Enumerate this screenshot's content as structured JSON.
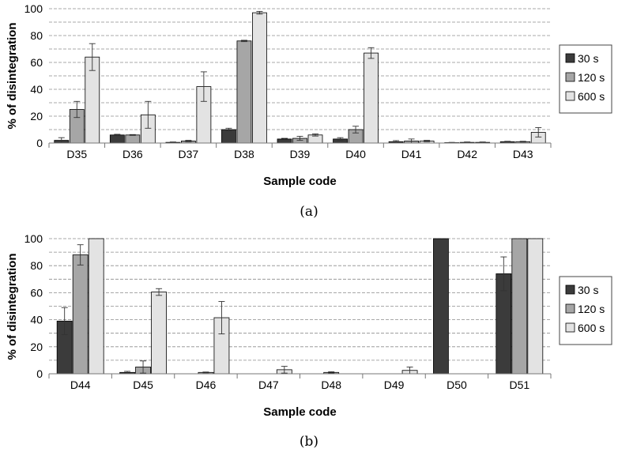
{
  "legend": {
    "labels": [
      "30 s",
      "120 s",
      "600 s"
    ],
    "colors": [
      "#3b3b3b",
      "#a6a6a6",
      "#e3e3e3"
    ]
  },
  "chart_data": [
    {
      "type": "bar",
      "caption": "(a)",
      "xlabel": "Sample code",
      "ylabel": "% of disintegration",
      "ylim": [
        0,
        100
      ],
      "yticks": [
        "0",
        "20",
        "40",
        "60",
        "80",
        "100"
      ],
      "grid": "dashed horizontal every 10",
      "legend_position": "right",
      "categories": [
        "D35",
        "D36",
        "D37",
        "D38",
        "D39",
        "D40",
        "D41",
        "D42",
        "D43"
      ],
      "series": [
        {
          "name": "30 s",
          "values": [
            2,
            6,
            0.5,
            10,
            3,
            3,
            1,
            0.3,
            1
          ],
          "errors": [
            2,
            0.5,
            0.3,
            1,
            0.5,
            1,
            0.8,
            0.2,
            0.3
          ]
        },
        {
          "name": "120 s",
          "values": [
            25,
            6,
            1.5,
            76,
            3.5,
            10,
            1.5,
            0.5,
            1
          ],
          "errors": [
            6,
            0.3,
            0.5,
            0.5,
            1.5,
            2.5,
            1.5,
            0.3,
            0.3
          ]
        },
        {
          "name": "600 s",
          "values": [
            64,
            21,
            42,
            97,
            6,
            67,
            1.5,
            0.5,
            8
          ],
          "errors": [
            10,
            10,
            11,
            1,
            0.8,
            4,
            0.5,
            0.3,
            3.5
          ]
        }
      ]
    },
    {
      "type": "bar",
      "caption": "(b)",
      "xlabel": "Sample code",
      "ylabel": "% of disintegration",
      "ylim": [
        0,
        100
      ],
      "yticks": [
        "0",
        "20",
        "40",
        "60",
        "80",
        "100"
      ],
      "grid": "dashed horizontal every 10",
      "legend_position": "right",
      "categories": [
        "D44",
        "D45",
        "D46",
        "D47",
        "D48",
        "D49",
        "D50",
        "D51"
      ],
      "series": [
        {
          "name": "30 s",
          "values": [
            39,
            1,
            0,
            0,
            0,
            0,
            100,
            74
          ],
          "errors": [
            10,
            0.8,
            0,
            0,
            0,
            0,
            0,
            12.5
          ]
        },
        {
          "name": "120 s",
          "values": [
            88,
            5,
            1,
            0,
            1,
            0,
            0,
            100
          ],
          "errors": [
            7.5,
            4.5,
            0.3,
            0,
            0.5,
            0,
            0,
            0
          ]
        },
        {
          "name": "600 s",
          "values": [
            100,
            60.5,
            41.5,
            3,
            0,
            2.5,
            0,
            100
          ],
          "errors": [
            0,
            2.5,
            12,
            2.5,
            0,
            2.5,
            0,
            0
          ]
        }
      ]
    }
  ]
}
